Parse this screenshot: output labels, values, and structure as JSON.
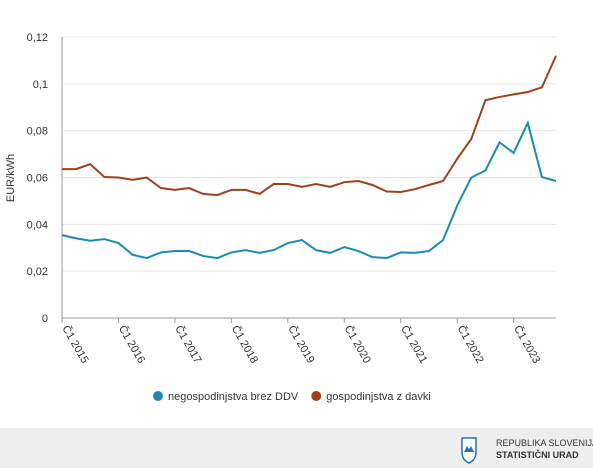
{
  "chart_data": {
    "type": "line",
    "ylabel": "EUR/kWh",
    "categories": [
      "Č1 2015",
      null,
      null,
      null,
      "Č1 2016",
      null,
      null,
      null,
      "Č1 2017",
      null,
      null,
      null,
      "Č1 2018",
      null,
      null,
      null,
      "Č1 2019",
      null,
      null,
      null,
      "Č1 2020",
      null,
      null,
      null,
      "Č1 2021",
      null,
      null,
      null,
      "Č1 2022",
      null,
      null,
      null,
      "Č1 2023",
      null,
      null,
      null
    ],
    "series": [
      {
        "name": "negospodinjstva brez DDV",
        "color": "#1a8bb3",
        "values": [
          0.0354,
          0.034,
          0.033,
          0.0337,
          0.032,
          0.027,
          0.0256,
          0.028,
          0.0286,
          0.0286,
          0.0265,
          0.0256,
          0.028,
          0.029,
          0.0278,
          0.029,
          0.032,
          0.0333,
          0.029,
          0.0278,
          0.0303,
          0.0286,
          0.026,
          0.0256,
          0.028,
          0.0278,
          0.0286,
          0.0333,
          0.048,
          0.06,
          0.063,
          0.075,
          0.0705,
          0.0833,
          0.0602,
          0.0585
        ]
      },
      {
        "name": "gospodinjstva z davki",
        "color": "#a0401a",
        "values": [
          0.0636,
          0.0636,
          0.0657,
          0.0602,
          0.06,
          0.059,
          0.06,
          0.0555,
          0.0547,
          0.0555,
          0.053,
          0.0525,
          0.0547,
          0.0547,
          0.053,
          0.0572,
          0.0572,
          0.056,
          0.0572,
          0.056,
          0.058,
          0.0585,
          0.0568,
          0.054,
          0.0538,
          0.055,
          0.0568,
          0.0585,
          0.068,
          0.0765,
          0.093,
          0.0944,
          0.0955,
          0.0965,
          0.0985,
          0.112
        ]
      }
    ],
    "ylim": [
      0,
      0.12
    ],
    "yticks": [
      0,
      {
        "value": 0.02,
        "label": "0,02"
      },
      {
        "value": 0.04,
        "label": "0,04"
      },
      {
        "value": 0.06,
        "label": "0,06"
      },
      {
        "value": 0.08,
        "label": "0,08"
      },
      {
        "value": 0.1,
        "label": "0,1"
      },
      {
        "value": 0.12,
        "label": "0,12"
      }
    ],
    "grid": true
  },
  "footer": {
    "line1": "REPUBLIKA SLOVENIJA",
    "line2": "STATISTIČNI URAD"
  }
}
